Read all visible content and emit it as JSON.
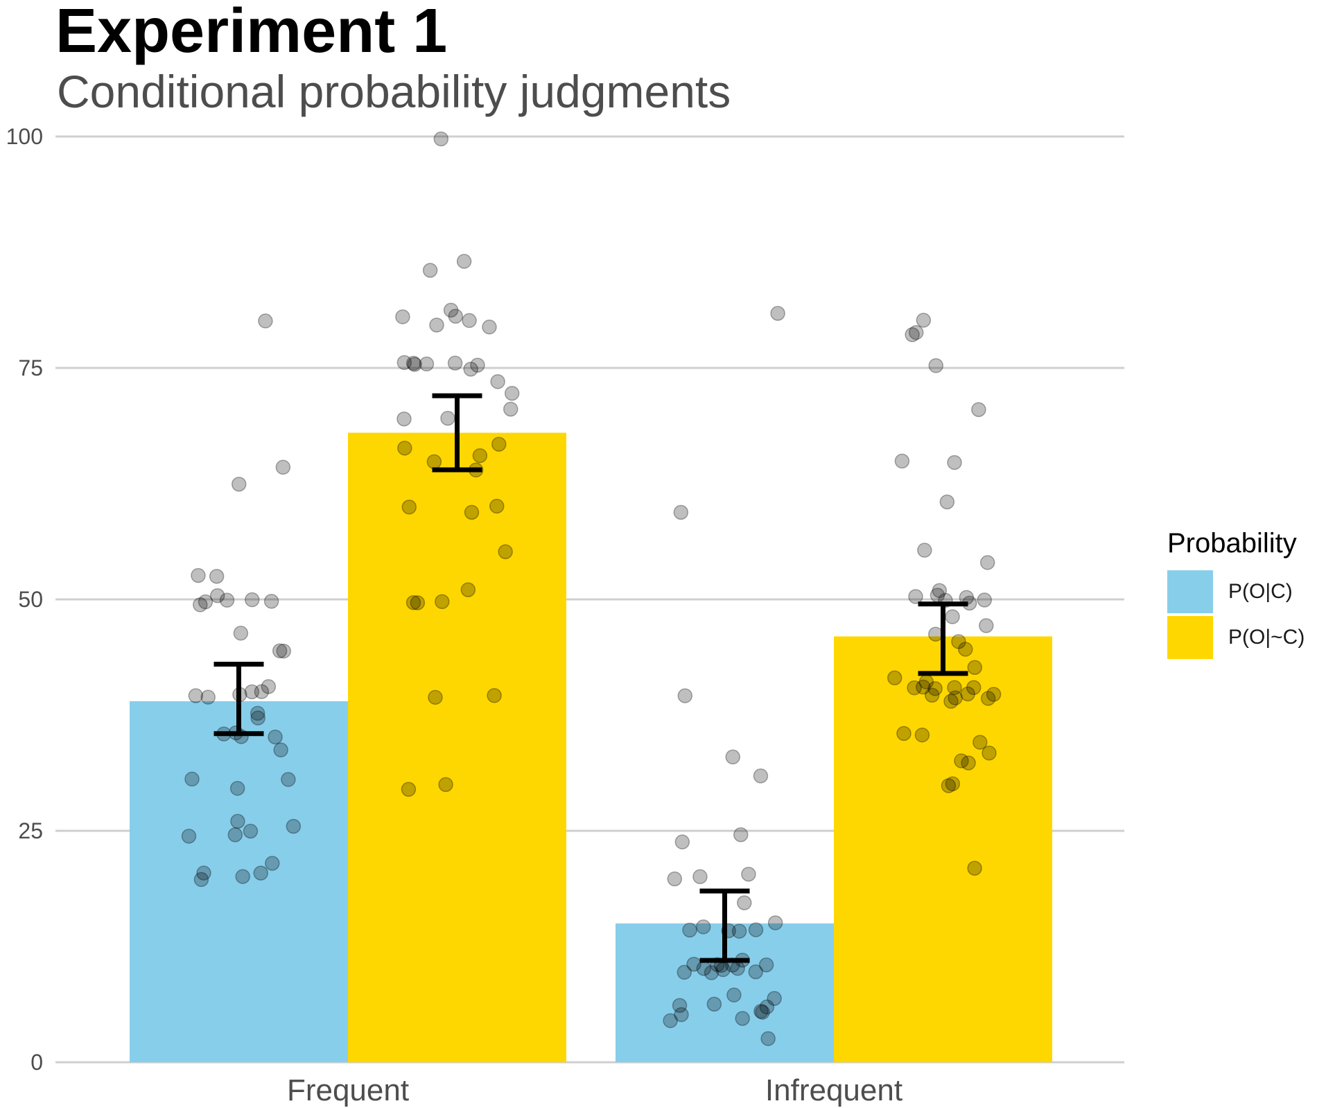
{
  "chart_data": {
    "type": "bar",
    "title": "Experiment 1",
    "subtitle": "Conditional probability judgments",
    "xlabel": "",
    "ylabel": "",
    "ylim": [
      0,
      100
    ],
    "y_ticks": [
      0,
      25,
      50,
      75,
      100
    ],
    "grid": true,
    "legend_position": "right",
    "legend_title": "Probability",
    "categories": [
      "Frequent",
      "Infrequent"
    ],
    "series": [
      {
        "name": "P(O|C)",
        "color": "#87CEEB",
        "values": [
          39,
          15
        ],
        "error_low": [
          35.5,
          11
        ],
        "error_high": [
          43,
          18.5
        ],
        "points": [
          [
            80,
            64,
            62,
            52,
            52,
            50,
            50,
            50,
            50,
            50,
            50,
            46,
            45,
            45,
            40,
            40,
            40,
            40,
            40,
            39,
            38,
            37,
            35,
            35,
            35,
            35,
            34,
            31,
            30,
            30,
            26,
            26,
            25,
            25,
            25,
            22,
            20,
            20,
            20,
            20
          ],
          [
            81,
            60,
            40,
            33,
            31,
            25,
            24,
            20,
            20,
            20,
            17,
            15,
            15,
            14,
            14,
            14,
            14,
            11,
            10,
            10,
            10,
            10,
            10,
            10,
            10,
            10,
            10,
            10,
            10,
            7,
            7,
            6,
            6,
            6,
            6,
            5,
            5,
            5,
            5,
            3
          ]
        ]
      },
      {
        "name": "P(O|~C)",
        "color": "#FFD700",
        "values": [
          68,
          46
        ],
        "error_low": [
          64,
          42
        ],
        "error_high": [
          72,
          49.5
        ],
        "points": [
          [
            100,
            87,
            86,
            81,
            80,
            80,
            80,
            80,
            80,
            75,
            75,
            75,
            75,
            75,
            75,
            75,
            74,
            72,
            70,
            70,
            70,
            67,
            66,
            65,
            65,
            64,
            60,
            60,
            60,
            55,
            51,
            50,
            50,
            50,
            40,
            39,
            30,
            30
          ],
          [
            80,
            79,
            78,
            75,
            70,
            65,
            65,
            60,
            55,
            54,
            51,
            50,
            50,
            50,
            50,
            50,
            49,
            48,
            47,
            46,
            45,
            45,
            43,
            41,
            41,
            40,
            40,
            40,
            40,
            40,
            40,
            40,
            40,
            39,
            39,
            39,
            36,
            35,
            35,
            33,
            33,
            32,
            30,
            30,
            21
          ]
        ]
      }
    ]
  }
}
